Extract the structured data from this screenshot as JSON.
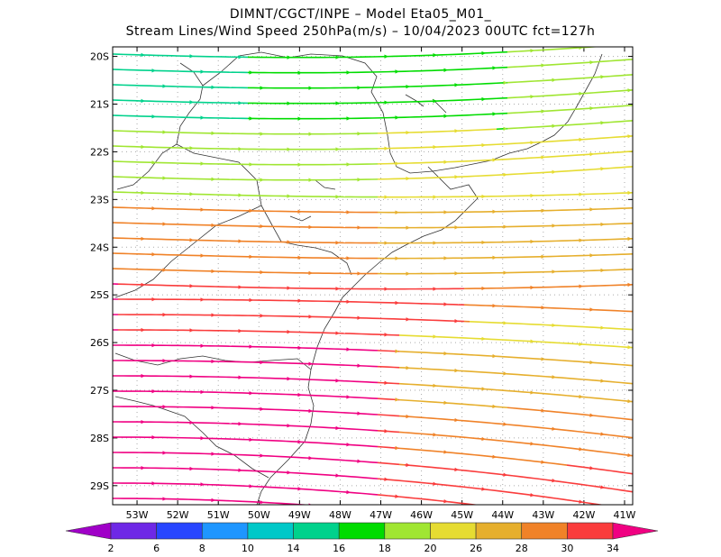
{
  "header": {
    "line1": "DIMNT/CGCT/INPE –  Model Eta05_M01_",
    "line2": "Stream Lines/Wind Speed 250hPa(m/s) –  10/04/2023 00UTC fct=127h"
  },
  "axes": {
    "lat_labels": [
      "20S",
      "21S",
      "22S",
      "23S",
      "24S",
      "25S",
      "26S",
      "27S",
      "28S",
      "29S"
    ],
    "lon_labels": [
      "53W",
      "52W",
      "51W",
      "50W",
      "49W",
      "48W",
      "47W",
      "46W",
      "45W",
      "44W",
      "43W",
      "42W",
      "41W"
    ]
  },
  "colorbar": {
    "labels": [
      "2",
      "6",
      "8",
      "10",
      "14",
      "16",
      "18",
      "20",
      "26",
      "28",
      "30",
      "34"
    ],
    "colors": [
      "#a000c8",
      "#6e28e6",
      "#2846ff",
      "#1e96ff",
      "#00c8c8",
      "#00d28c",
      "#00dc00",
      "#a0e632",
      "#e6dc32",
      "#e6af2d",
      "#f08228",
      "#fa3c3c",
      "#f00082"
    ]
  },
  "map": {
    "lon_range": [
      -53.6,
      -40.8
    ],
    "lat_range": [
      -29.4,
      -19.8
    ],
    "grid": true
  }
}
